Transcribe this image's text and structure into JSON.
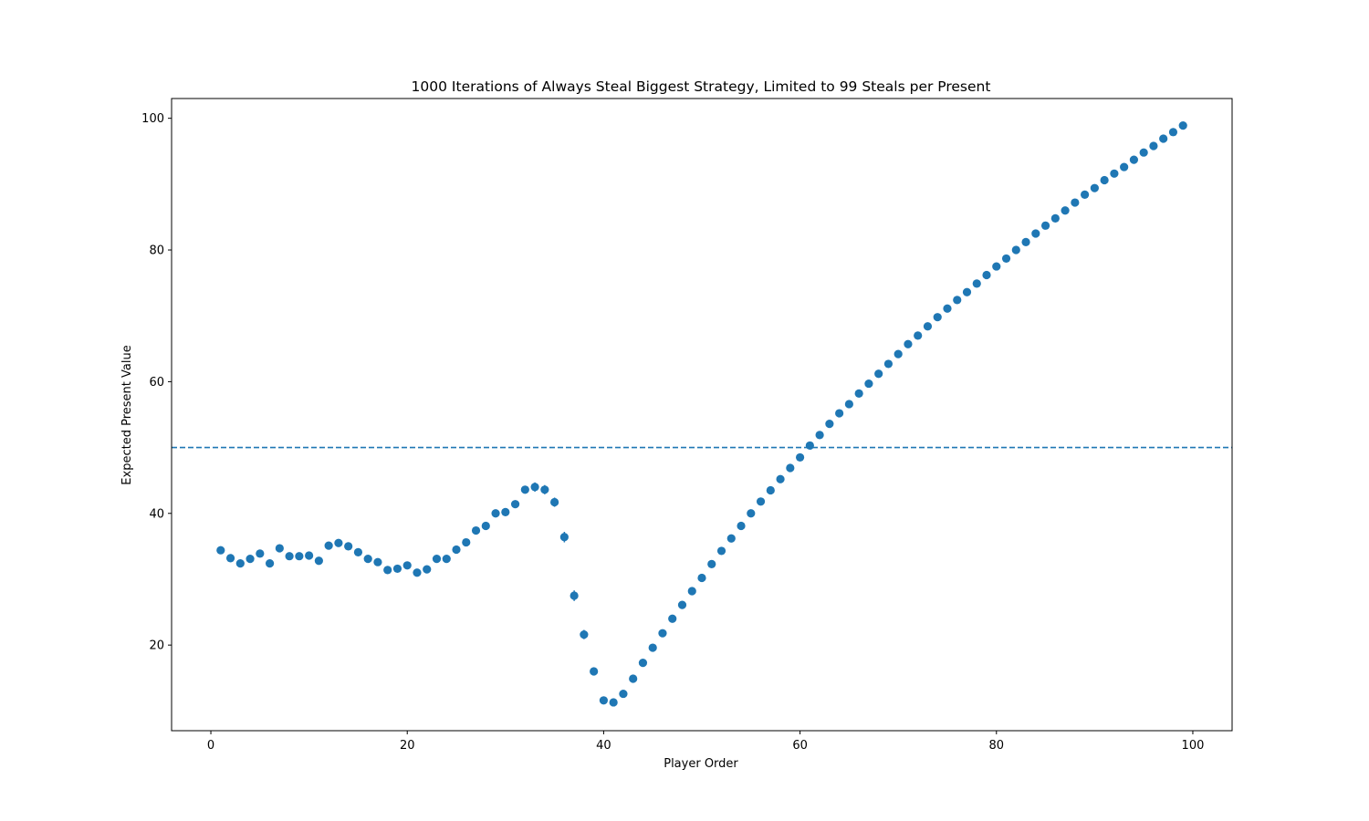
{
  "chart_data": {
    "type": "scatter",
    "title": "1000 Iterations of Always Steal Biggest Strategy, Limited to 99 Steals per Present",
    "xlabel": "Player Order",
    "ylabel": "Expected Present Value",
    "xlim": [
      -4,
      104
    ],
    "ylim": [
      7,
      103
    ],
    "xticks": [
      0,
      20,
      40,
      60,
      80,
      100
    ],
    "yticks": [
      20,
      40,
      60,
      80,
      100
    ],
    "grid": false,
    "marker_color": "#1f77b4",
    "reference_line": {
      "y": 50,
      "style": "dashed",
      "color": "#1f77b4"
    },
    "x": [
      1,
      2,
      3,
      4,
      5,
      6,
      7,
      8,
      9,
      10,
      11,
      12,
      13,
      14,
      15,
      16,
      17,
      18,
      19,
      20,
      21,
      22,
      23,
      24,
      25,
      26,
      27,
      28,
      29,
      30,
      31,
      32,
      33,
      34,
      35,
      36,
      37,
      38,
      39,
      40,
      41,
      42,
      43,
      44,
      45,
      46,
      47,
      48,
      49,
      50,
      51,
      52,
      53,
      54,
      55,
      56,
      57,
      58,
      59,
      60,
      61,
      62,
      63,
      64,
      65,
      66,
      67,
      68,
      69,
      70,
      71,
      72,
      73,
      74,
      75,
      76,
      77,
      78,
      79,
      80,
      81,
      82,
      83,
      84,
      85,
      86,
      87,
      88,
      89,
      90,
      91,
      92,
      93,
      94,
      95,
      96,
      97,
      98,
      99
    ],
    "y": [
      34.4,
      33.2,
      32.4,
      33.1,
      33.9,
      32.4,
      34.7,
      33.5,
      33.5,
      33.6,
      32.8,
      35.1,
      35.5,
      35,
      34.1,
      33.1,
      32.6,
      31.4,
      31.6,
      32.1,
      31,
      31.5,
      33.1,
      33.1,
      34.5,
      35.6,
      37.4,
      38.1,
      40,
      40.2,
      41.4,
      43.6,
      44,
      43.6,
      41.7,
      36.4,
      27.5,
      21.6,
      16,
      11.6,
      11.3,
      12.6,
      14.9,
      17.3,
      19.6,
      21.8,
      24,
      26.1,
      28.2,
      30.2,
      32.3,
      34.3,
      36.2,
      38.1,
      40,
      41.8,
      43.5,
      45.2,
      46.9,
      48.5,
      50.3,
      51.9,
      53.6,
      55.2,
      56.6,
      58.2,
      59.7,
      61.2,
      62.7,
      64.2,
      65.7,
      67,
      68.4,
      69.8,
      71.1,
      72.4,
      73.6,
      74.9,
      76.2,
      77.5,
      78.7,
      80,
      81.2,
      82.5,
      83.7,
      84.8,
      86,
      87.2,
      88.4,
      89.4,
      90.6,
      91.6,
      92.6,
      93.7,
      94.8,
      95.8,
      96.9,
      97.9,
      98.9
    ],
    "yerr": [
      0.6,
      0.5,
      0.5,
      0.5,
      0.6,
      0.6,
      0.6,
      0.5,
      0.5,
      0.5,
      0.5,
      0.5,
      0.5,
      0.5,
      0.5,
      0.5,
      0.5,
      0.5,
      0.5,
      0.5,
      0.5,
      0.5,
      0.5,
      0.5,
      0.5,
      0.5,
      0.5,
      0.5,
      0.6,
      0.6,
      0.6,
      0.6,
      0.7,
      0.7,
      0.7,
      0.8,
      0.8,
      0.7,
      0.6,
      0.5,
      0.5,
      0.4,
      0.4,
      0.4,
      0.4,
      0.4,
      0.4,
      0.4,
      0.4,
      0.3,
      0.3,
      0.3,
      0.3,
      0.3,
      0.3,
      0.3,
      0.3,
      0.3,
      0.3,
      0.3,
      0.3,
      0.3,
      0.3,
      0.3,
      0.3,
      0.3,
      0.3,
      0.3,
      0.3,
      0.3,
      0.3,
      0.3,
      0.3,
      0.3,
      0.3,
      0.3,
      0.3,
      0.3,
      0.3,
      0.3,
      0.3,
      0.3,
      0.3,
      0.3,
      0.3,
      0.3,
      0.3,
      0.3,
      0.3,
      0.3,
      0.3,
      0.3,
      0.3,
      0.3,
      0.3,
      0.3,
      0.3,
      0.3,
      0.3
    ]
  }
}
